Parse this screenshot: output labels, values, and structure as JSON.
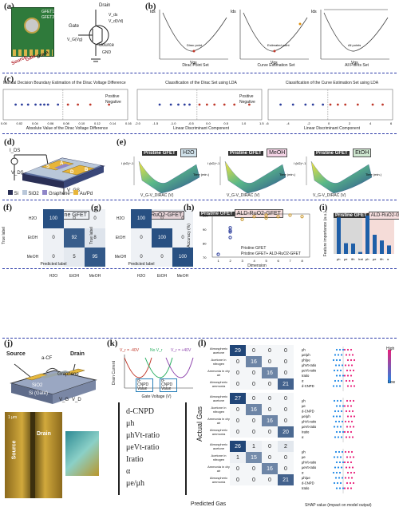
{
  "tags": {
    "a": "(a)",
    "b": "(b)",
    "c": "(c)",
    "d": "(d)",
    "e": "(e)",
    "f": "(f)",
    "g": "(g)",
    "h": "(h)",
    "i": "(i)",
    "j": "(j)",
    "k": "(k)",
    "l": "(l)"
  },
  "a": {
    "chip1": "GFET1",
    "chip2": "GFET2",
    "source": "Source",
    "gate": "Gate",
    "drain": "Drain",
    "schem_drain": "Drain",
    "schem_vds": "V_ds",
    "schem_vd": "V_d(Vd)",
    "schem_gate": "Gate",
    "schem_vg": "V_G(Vg)",
    "schem_source": "Source",
    "schem_gnd": "GND"
  },
  "b": {
    "ylabel": "Ids",
    "xlabel": "Vgs",
    "panels": [
      {
        "caption": "Dirac Point Set",
        "label": "Dirac point"
      },
      {
        "caption": "Curve Estimation Set",
        "label": "Estimated point",
        "label2": "Dirac point"
      },
      {
        "caption": "All Points Set",
        "label": "All points"
      }
    ]
  },
  "c": {
    "panels": [
      {
        "title": "Manual Decision Boundary Estimation of the Dirac Voltage Difference",
        "xlabel": "Absolute Value of the Dirac Voltage Difference",
        "ticks": [
          "0.00",
          "0.02",
          "0.04",
          "0.06",
          "0.08",
          "0.10",
          "0.12",
          "0.14",
          "0.16"
        ]
      },
      {
        "title": "Classification of the Dirac Set using LDA",
        "xlabel": "Linear Discriminant Component",
        "ticks": [
          "-2.0",
          "-1.5",
          "-1.0",
          "-0.5",
          "0.0",
          "0.5",
          "1.0",
          "1.5"
        ]
      },
      {
        "title": "Classification of the Curve Estimation Set using LDA",
        "xlabel": "Linear Discriminant Component",
        "ticks": [
          "-6",
          "-4",
          "-2",
          "0",
          "2",
          "4",
          "6"
        ]
      }
    ],
    "legend": [
      "Positive",
      "Negative"
    ]
  },
  "d": {
    "ids": "I_DS",
    "vds": "V_DS",
    "vgs": "V_GS",
    "s": "S",
    "d": "D",
    "a": "A",
    "b": "B",
    "legend": [
      "Si",
      "SiO2",
      "Graphene",
      "Au/Pd"
    ]
  },
  "e": {
    "panels": [
      {
        "chip": "Pristine GFET",
        "gas": "H2O",
        "gas_color": "#cfe1ea"
      },
      {
        "chip": "Pristine GFET",
        "gas": "MeOH",
        "gas_color": "#f3d2e4"
      },
      {
        "chip": "Pristine GFET",
        "gas": "EtOH",
        "gas_color": "#cde6cf"
      }
    ],
    "z": "I (kΩ)^-1",
    "x": "V_G-V_DIRAC (V)",
    "y": "Time (min.)",
    "yticks": [
      "0",
      "10",
      "20",
      "30"
    ]
  },
  "f": {
    "title": "Pristine GFET",
    "rows": [
      "H2O",
      "EtOH",
      "MeOH"
    ],
    "cols": [
      "H2O",
      "EtOH",
      "MeOH"
    ],
    "values": [
      [
        100,
        0,
        0
      ],
      [
        0,
        92,
        8
      ],
      [
        0,
        5,
        95
      ]
    ],
    "ylabel": "True label",
    "xlabel": "Predicted label"
  },
  "g": {
    "title": "ALD-RuO2-GFET",
    "rows": [
      "H2O",
      "EtOH",
      "MeOH"
    ],
    "cols": [
      "H2O",
      "EtOH",
      "MeOH"
    ],
    "values": [
      [
        100,
        0,
        0
      ],
      [
        0,
        100,
        0
      ],
      [
        0,
        0,
        100
      ]
    ],
    "ylabel": "True label",
    "xlabel": "Predicted label"
  },
  "h": {
    "chip1": "Pristine GFET",
    "chip2": "ALD-RuO2-GFET",
    "ylabel": "Accuracy (%)",
    "xlabel": "Dimension",
    "yticks": [
      "70",
      "80",
      "90",
      "100"
    ],
    "xticks": [
      "1",
      "2",
      "3",
      "4",
      "5",
      "6",
      "7",
      "8"
    ],
    "legend": [
      "Pristine GFET",
      "Pristine GFET+ ALD-RuO2-GFET"
    ]
  },
  "i": {
    "chip1": "Pristine GFET",
    "chip2": "ALD-RuO2-GFET",
    "ylabel": "Feature importance (a.u.)",
    "xticks": [
      "μh",
      "μe",
      "θh",
      "Irat",
      "μh",
      "μe",
      "θh",
      "α"
    ]
  },
  "j": {
    "source": "Source",
    "drain": "Drain",
    "acf": "a-CF",
    "graphene": "Graphene",
    "sio2": "SiO2",
    "si": "Si (Gate)",
    "vg": "V_G",
    "vd": "V_D",
    "source2": "Source",
    "drain2": "Drain",
    "scale": "1 μm"
  },
  "k": {
    "vlabels": [
      "V_r = -40V",
      "No V_r",
      "V_r = +40V"
    ],
    "ylabel": "Drain Current",
    "xlabel": "Gate Voltage (V)",
    "boxes": [
      "d-CNPD Value",
      "d-CNPD Value"
    ],
    "features": [
      "d-CNPD",
      "μh",
      "μhVt-ratio",
      "μeVt-ratio",
      "Iratio",
      "α",
      "μe/μh"
    ]
  },
  "l": {
    "ylabel": "Actual Gas",
    "xlabel": "Predicted Gas",
    "blocks": [
      {
        "rows": [
          "Atmospheric acetone",
          "Acetone in nitrogen",
          "Ammonia in dry air",
          "Atmospheric ammonia"
        ],
        "values": [
          [
            29,
            0,
            0,
            0
          ],
          [
            0,
            16,
            0,
            0
          ],
          [
            0,
            0,
            16,
            0
          ],
          [
            0,
            0,
            0,
            21
          ]
        ]
      },
      {
        "rows": [
          "Atmospheric acetone",
          "Acetone in nitrogen",
          "Ammonia in dry air",
          "Atmospheric ammonia"
        ],
        "values": [
          [
            27,
            0,
            0,
            0
          ],
          [
            0,
            16,
            0,
            0
          ],
          [
            0,
            0,
            16,
            0
          ],
          [
            0,
            0,
            0,
            20
          ]
        ]
      },
      {
        "rows": [
          "Atmospheric acetone",
          "Acetone in nitrogen",
          "Ammonia in dry air",
          "Atmospheric ammonia"
        ],
        "values": [
          [
            26,
            1,
            0,
            2
          ],
          [
            1,
            15,
            0,
            0
          ],
          [
            0,
            0,
            16,
            0
          ],
          [
            0,
            0,
            0,
            21
          ]
        ]
      }
    ],
    "cols": [
      "Atmospheric acetone",
      "Acetone in nitrogen",
      "Ammonia in dry air",
      "Atmospheric ammonia"
    ],
    "shap_features": [
      [
        "μh",
        "μe/μh",
        "μh/μe",
        "μhVt-ratio",
        "μeVt-ratio",
        "Iratio",
        "α",
        "d-CNPD"
      ],
      [
        "μh",
        "μe",
        "d-CNPD",
        "μe/μh",
        "μhVt-ratio",
        "μeVt-ratio",
        "Iratio",
        "α"
      ],
      [
        "μh",
        "μe",
        "μhVt-ratio",
        "μeVt-ratio",
        "α",
        "μh/μe",
        "d-CNPD",
        "Iratio"
      ]
    ],
    "shap_xlabel": "SHAP value (impact on model output)",
    "high": "High",
    "low": "Low",
    "feature_value": "Feature value"
  }
}
